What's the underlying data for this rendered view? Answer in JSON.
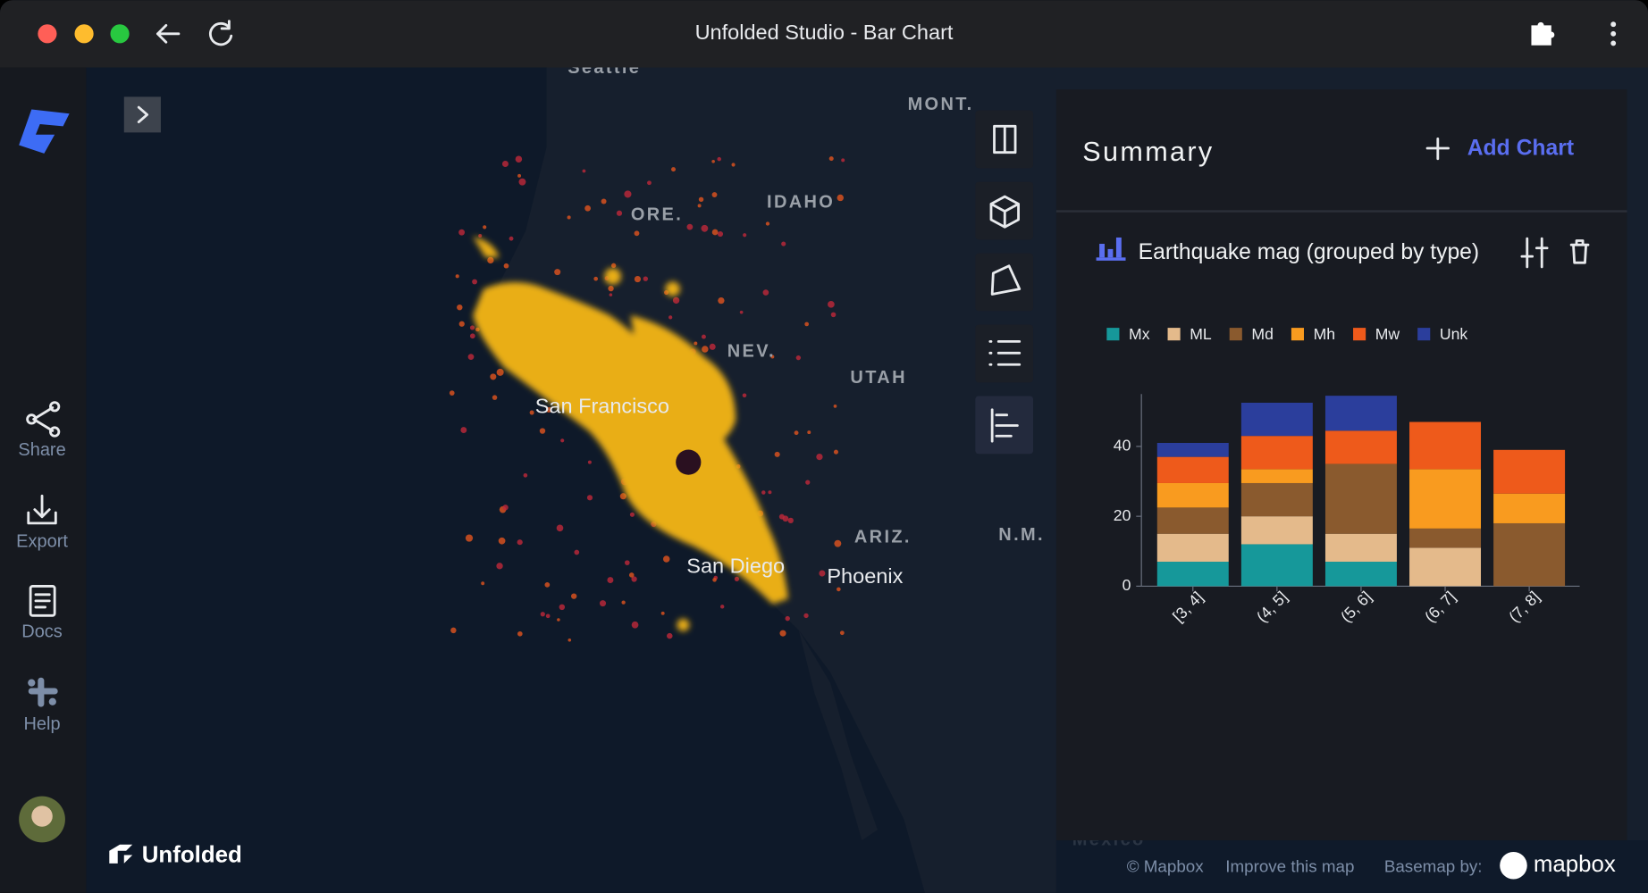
{
  "window": {
    "title": "Unfolded Studio - Bar Chart"
  },
  "sidebar": {
    "share": "Share",
    "export": "Export",
    "docs": "Docs",
    "help": "Help"
  },
  "map": {
    "labels": [
      "Seattle",
      "MONT.",
      "ORE.",
      "IDAHO",
      "NEV.",
      "UTAH",
      "San Francisco",
      "San Diego",
      "ARIZ.",
      "N.M.",
      "Phoenix",
      "Mexico"
    ],
    "brand": "Unfolded",
    "attribution": {
      "copyright": "© Mapbox",
      "improve": "Improve this map",
      "basemap": "Basemap by:",
      "provider": "mapbox"
    }
  },
  "panel": {
    "title": "Summary",
    "add_chart": "Add Chart"
  },
  "chart_data": {
    "type": "stacked_bar",
    "title": "Earthquake mag (grouped by type)",
    "categories": [
      "[3, 4]",
      "(4, 5]",
      "(5, 6]",
      "(6, 7]",
      "(7, 8]"
    ],
    "series": [
      {
        "name": "Mx",
        "color": "#16989a",
        "values": [
          7,
          12,
          7,
          0,
          0
        ]
      },
      {
        "name": "ML",
        "color": "#e4ba8b",
        "values": [
          8,
          8,
          8,
          11,
          0
        ]
      },
      {
        "name": "Md",
        "color": "#8a5a2e",
        "values": [
          7.5,
          9.5,
          20,
          5.5,
          18
        ]
      },
      {
        "name": "Mh",
        "color": "#f99b1f",
        "values": [
          7,
          4,
          0,
          17,
          8.5
        ]
      },
      {
        "name": "Mw",
        "color": "#ee5a1b",
        "values": [
          7.5,
          9.5,
          9.5,
          13.5,
          12.5
        ]
      },
      {
        "name": "Unk",
        "color": "#2b3e9c",
        "values": [
          4,
          9.5,
          10,
          0,
          0
        ]
      }
    ],
    "ylim": [
      0,
      55
    ],
    "yticks": [
      0,
      20,
      40
    ],
    "grid": false
  }
}
